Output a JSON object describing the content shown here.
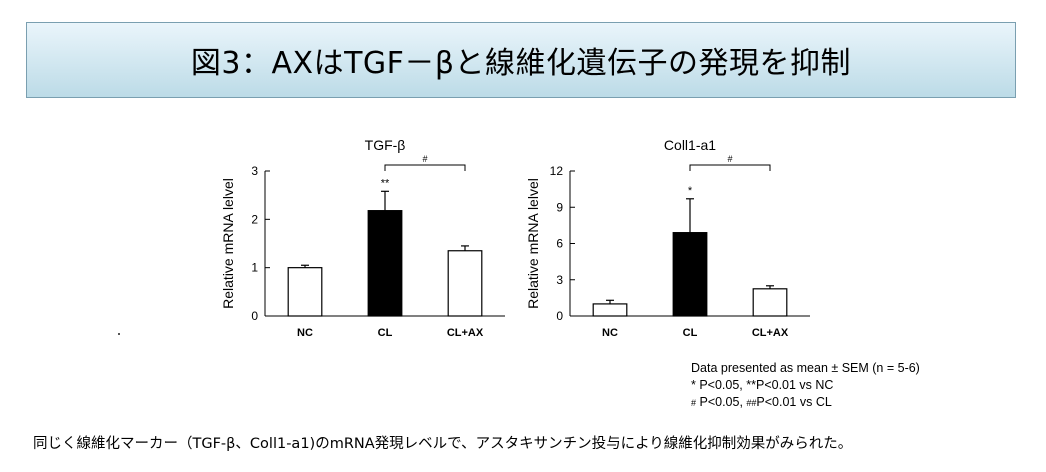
{
  "title": "図3：AXはTGF－βと線維化遺伝子の発現を抑制",
  "chart_data": [
    {
      "type": "bar",
      "title": "TGF-β",
      "ylabel": "Relative mRNA lelvel",
      "xlabel": "",
      "categories": [
        "NC",
        "CL",
        "CL+AX"
      ],
      "values": [
        1.0,
        2.18,
        1.35
      ],
      "errors": [
        0.05,
        0.4,
        0.1
      ],
      "bar_colors": [
        "#ffffff",
        "#000000",
        "#ffffff"
      ],
      "significance": [
        "",
        "**",
        ""
      ],
      "ylim": [
        0,
        3
      ],
      "yticks": [
        0,
        1,
        2,
        3
      ],
      "bracket": {
        "from": "CL",
        "to": "CL+AX",
        "label": "#"
      },
      "grid": false
    },
    {
      "type": "bar",
      "title": "Coll1-a1",
      "ylabel": "Relative mRNA lelvel",
      "xlabel": "",
      "categories": [
        "NC",
        "CL",
        "CL+AX"
      ],
      "values": [
        1.0,
        6.9,
        2.25
      ],
      "errors": [
        0.3,
        2.8,
        0.25
      ],
      "bar_colors": [
        "#ffffff",
        "#000000",
        "#ffffff"
      ],
      "significance": [
        "",
        "*",
        ""
      ],
      "ylim": [
        0,
        12
      ],
      "yticks": [
        0,
        3,
        6,
        9,
        12
      ],
      "bracket": {
        "from": "CL",
        "to": "CL+AX",
        "label": "#"
      },
      "grid": false
    }
  ],
  "notes": {
    "line1": "Data presented as mean ± SEM (n = 5-6)",
    "line2": "* P<0.05, **P<0.01 vs  NC",
    "line3_hash1": "#",
    "line3_a": " P<0.05, ",
    "line3_hash2": "##",
    "line3_b": "P<0.01 vs  CL"
  },
  "caption": "同じく線維化マーカー（TGF-β、Coll1-a1)のmRNA発現レベルで、アスタキサンチン投与により線維化抑制効果がみられた。"
}
